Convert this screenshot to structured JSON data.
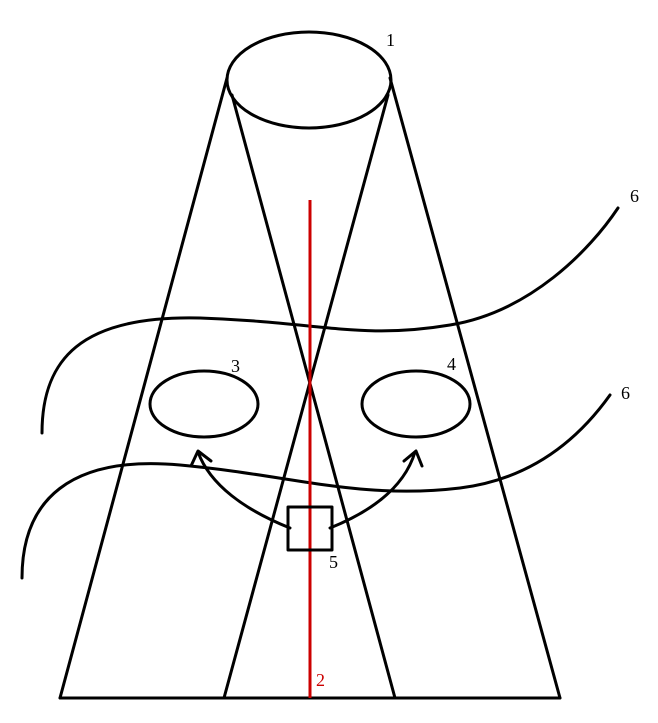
{
  "colors": {
    "line": "#000000",
    "axis": "#cc0000",
    "background": "#ffffff"
  },
  "labels": {
    "source": "1",
    "axis": "2",
    "left_region": "3",
    "right_region": "4",
    "box": "5",
    "upper_curve": "6",
    "lower_curve": "6"
  }
}
